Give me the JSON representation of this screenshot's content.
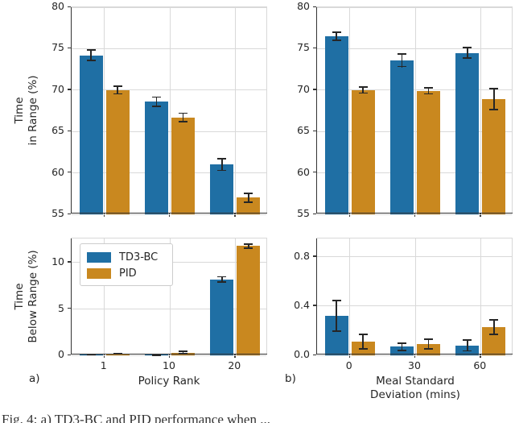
{
  "figure": {
    "series_colors": {
      "td3bc": "#1f6fa4",
      "pid": "#c9881f"
    },
    "grid_color": "#d9d9d9",
    "errorbar_color": "#262626",
    "panel_a": "a)",
    "panel_b": "b)",
    "legend": {
      "items": [
        {
          "label": "TD3-BC",
          "color_key": "td3bc"
        },
        {
          "label": "PID",
          "color_key": "pid"
        }
      ]
    },
    "caption_fragment": "Fig. 4: a) TD3-BC and PID performance when ..."
  },
  "chart_data": [
    {
      "id": "time-in-range-vs-policy-rank",
      "type": "bar",
      "ylabel_lines": [
        "Time",
        "in Range (%)"
      ],
      "xlabel_lines": [],
      "categories": [
        "1",
        "10",
        "20"
      ],
      "series": [
        {
          "name": "TD3-BC",
          "values": [
            74.2,
            68.6,
            61.0
          ],
          "errors": [
            0.7,
            0.65,
            0.8
          ]
        },
        {
          "name": "PID",
          "values": [
            70.0,
            66.7,
            57.0
          ],
          "errors": [
            0.55,
            0.6,
            0.65
          ]
        }
      ],
      "ylim": [
        55,
        80
      ],
      "yticks": [
        55,
        60,
        65,
        70,
        75,
        80
      ],
      "ytick_labels": [
        "55",
        "60",
        "65",
        "70",
        "75",
        "80"
      ],
      "show_xtick_labels": false,
      "grid": true,
      "legend": false
    },
    {
      "id": "time-in-range-vs-meal-sd",
      "type": "bar",
      "ylabel_lines": [],
      "xlabel_lines": [],
      "categories": [
        "0",
        "30",
        "60"
      ],
      "series": [
        {
          "name": "TD3-BC",
          "values": [
            76.5,
            73.6,
            74.5
          ],
          "errors": [
            0.6,
            0.85,
            0.7
          ]
        },
        {
          "name": "PID",
          "values": [
            70.0,
            69.9,
            68.9
          ],
          "errors": [
            0.45,
            0.45,
            1.35
          ]
        }
      ],
      "ylim": [
        55,
        80
      ],
      "yticks": [
        55,
        60,
        65,
        70,
        75,
        80
      ],
      "ytick_labels": [
        "55",
        "60",
        "65",
        "70",
        "75",
        "80"
      ],
      "show_xtick_labels": false,
      "grid": true,
      "legend": false
    },
    {
      "id": "time-below-range-vs-policy-rank",
      "type": "bar",
      "ylabel_lines": [
        "Time",
        "Below Range (%)"
      ],
      "xlabel_lines": [
        "Policy Rank"
      ],
      "categories": [
        "1",
        "10",
        "20"
      ],
      "series": [
        {
          "name": "TD3-BC",
          "values": [
            0.12,
            0.06,
            8.2
          ],
          "errors": [
            0.1,
            0.04,
            0.35
          ]
        },
        {
          "name": "PID",
          "values": [
            0.18,
            0.3,
            11.8
          ],
          "errors": [
            0.1,
            0.2,
            0.3
          ]
        }
      ],
      "ylim": [
        0,
        12.6
      ],
      "yticks": [
        0,
        5,
        10
      ],
      "ytick_labels": [
        "0",
        "5",
        "10"
      ],
      "show_xtick_labels": true,
      "grid": true,
      "legend": true
    },
    {
      "id": "time-below-range-vs-meal-sd",
      "type": "bar",
      "ylabel_lines": [],
      "xlabel_lines": [
        "Meal Standard",
        "Deviation (mins)"
      ],
      "categories": [
        "0",
        "30",
        "60"
      ],
      "series": [
        {
          "name": "TD3-BC",
          "values": [
            0.32,
            0.07,
            0.08
          ],
          "errors": [
            0.13,
            0.035,
            0.05
          ]
        },
        {
          "name": "PID",
          "values": [
            0.11,
            0.09,
            0.23
          ],
          "errors": [
            0.065,
            0.045,
            0.065
          ]
        }
      ],
      "ylim": [
        0,
        0.95
      ],
      "yticks": [
        0,
        0.4,
        0.8
      ],
      "ytick_labels": [
        "0.0",
        "0.4",
        "0.8"
      ],
      "show_xtick_labels": true,
      "grid": true,
      "legend": false
    }
  ]
}
